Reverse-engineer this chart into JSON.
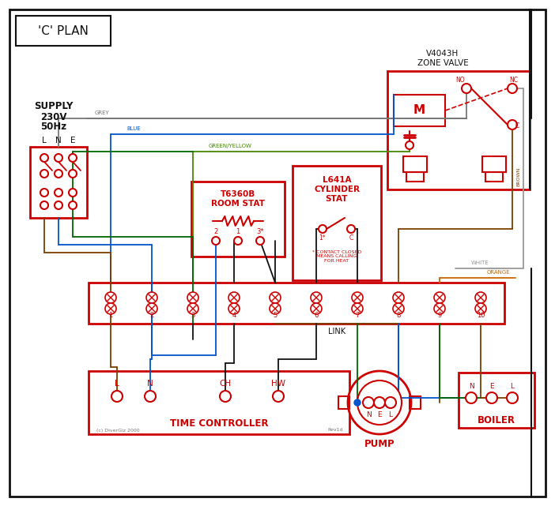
{
  "bg_color": "#ffffff",
  "red": "#cc0000",
  "blue": "#0055cc",
  "brown": "#7B3F00",
  "green": "#006600",
  "grey": "#777777",
  "orange": "#cc6600",
  "white_wire": "#999999",
  "green_yellow": "#448800",
  "black": "#111111",
  "title": "'C' PLAN",
  "supply_line1": "SUPPLY",
  "supply_line2": "230V",
  "supply_line3": "50Hz",
  "zone_valve_title1": "V4043H",
  "zone_valve_title2": "ZONE VALVE",
  "room_stat_title1": "T6360B",
  "room_stat_title2": "ROOM STAT",
  "cyl_stat_title1": "L641A",
  "cyl_stat_title2": "CYLINDER",
  "cyl_stat_title3": "STAT",
  "time_ctrl_title": "TIME CONTROLLER",
  "pump_title": "PUMP",
  "boiler_title": "BOILER",
  "link_label": "LINK",
  "contact_note": "* CONTACT CLOSED\nMEANS CALLING\nFOR HEAT",
  "copyright": "(c) DiverGiz 2000",
  "rev": "Rev1d"
}
